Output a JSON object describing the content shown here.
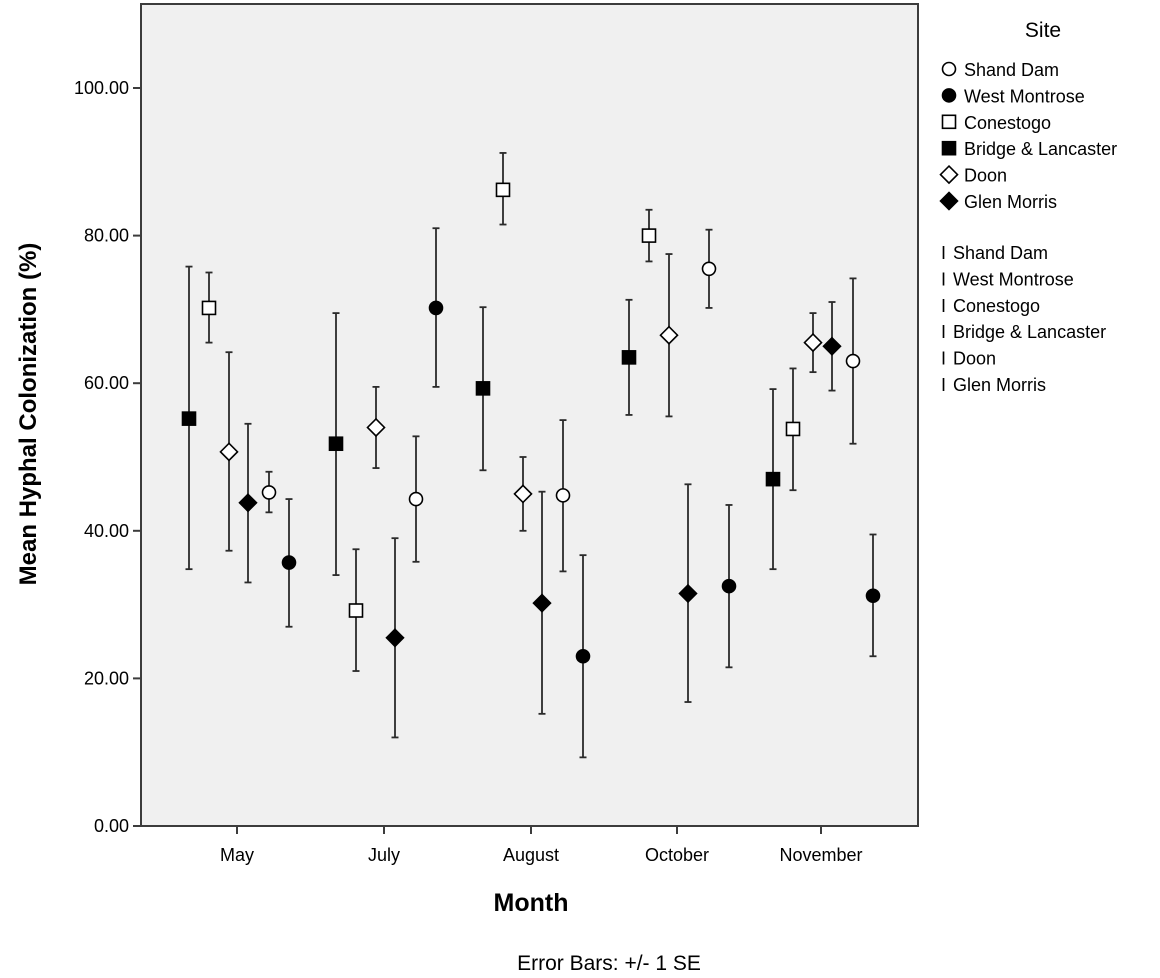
{
  "chart_data": {
    "type": "scatter",
    "xlabel": "Month",
    "ylabel": "Mean Hyphal Colonization (%)",
    "footnote": "Error Bars: +/- 1 SE",
    "categories": [
      "May",
      "July",
      "August",
      "October",
      "November"
    ],
    "ylim": [
      0,
      112
    ],
    "yticks": [
      0,
      20,
      40,
      60,
      80,
      100
    ],
    "ytick_labels": [
      "0.00",
      "20.00",
      "40.00",
      "60.00",
      "80.00",
      "100.00"
    ],
    "grid": false,
    "plot_background": "#f0f0f0",
    "legend": {
      "title": "Site",
      "placement": "right",
      "errorbar_glyph": "I"
    },
    "series": [
      {
        "name": "Shand Dam",
        "marker": "circle-open",
        "values": [
          45.2,
          44.3,
          44.8,
          75.5,
          63.0
        ],
        "lower": [
          42.5,
          35.8,
          34.5,
          70.2,
          51.8
        ],
        "upper": [
          48.0,
          52.8,
          55.0,
          80.8,
          74.2
        ]
      },
      {
        "name": "West Montrose",
        "marker": "circle-filled",
        "values": [
          35.7,
          70.2,
          23.0,
          32.5,
          31.2
        ],
        "lower": [
          27.0,
          59.5,
          9.3,
          21.5,
          23.0
        ],
        "upper": [
          44.3,
          81.0,
          36.7,
          43.5,
          39.5
        ]
      },
      {
        "name": "Conestogo",
        "marker": "square-open",
        "values": [
          70.2,
          29.2,
          86.2,
          80.0,
          53.8
        ],
        "lower": [
          65.5,
          21.0,
          81.5,
          76.5,
          45.5
        ],
        "upper": [
          75.0,
          37.5,
          91.2,
          83.5,
          62.0
        ]
      },
      {
        "name": "Bridge & Lancaster",
        "marker": "square-filled",
        "values": [
          55.2,
          51.8,
          59.3,
          63.5,
          47.0
        ],
        "lower": [
          34.8,
          34.0,
          48.2,
          55.7,
          34.8
        ],
        "upper": [
          75.8,
          69.5,
          70.3,
          71.3,
          59.2
        ]
      },
      {
        "name": "Doon",
        "marker": "diamond-open",
        "values": [
          50.7,
          54.0,
          45.0,
          66.5,
          65.5
        ],
        "lower": [
          37.3,
          48.5,
          40.0,
          55.5,
          61.5
        ],
        "upper": [
          64.2,
          59.5,
          50.0,
          77.5,
          69.5
        ]
      },
      {
        "name": "Glen Morris",
        "marker": "diamond-filled",
        "values": [
          43.8,
          25.5,
          30.2,
          31.5,
          65.0
        ],
        "lower": [
          33.0,
          12.0,
          15.2,
          16.8,
          59.0
        ],
        "upper": [
          54.5,
          39.0,
          45.3,
          46.3,
          71.0
        ]
      }
    ],
    "plot_order": [
      "Bridge & Lancaster",
      "Conestogo",
      "Doon",
      "Glen Morris",
      "Shand Dam",
      "West Montrose"
    ]
  }
}
